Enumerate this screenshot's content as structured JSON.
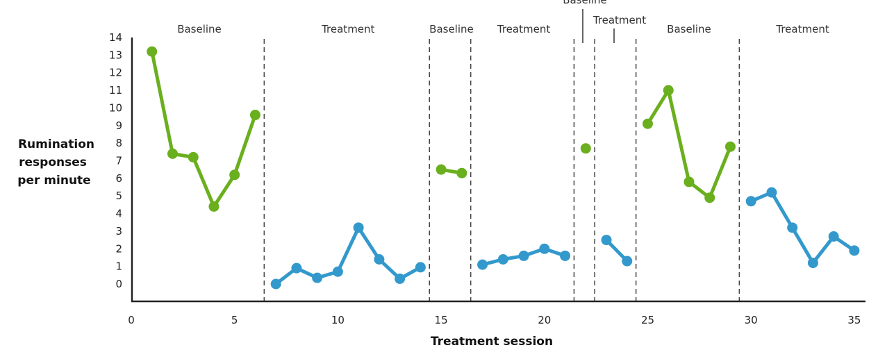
{
  "chart_data": {
    "type": "line",
    "xlabel": "Treatment session",
    "ylabel_lines": [
      "Rumination",
      "responses",
      "per minute"
    ],
    "xlim": [
      0,
      35
    ],
    "ylim": [
      0,
      14
    ],
    "xticks": [
      0,
      5,
      10,
      15,
      20,
      25,
      30,
      35
    ],
    "yticks": [
      0,
      1,
      2,
      3,
      4,
      5,
      6,
      7,
      8,
      9,
      10,
      11,
      12,
      13,
      14
    ],
    "grid": false,
    "colors": {
      "Baseline": "#6aaf1e",
      "Treatment": "#3399cc"
    },
    "phase_boundaries": [
      6.5,
      14.5,
      16.5,
      21.5,
      22.5,
      24.5,
      29.5
    ],
    "phases": [
      {
        "label": "Baseline",
        "x": [
          1,
          2,
          3,
          4,
          5,
          6
        ],
        "y": [
          13.2,
          7.4,
          7.2,
          4.4,
          6.2,
          9.6
        ]
      },
      {
        "label": "Treatment",
        "x": [
          7,
          8,
          9,
          10,
          11,
          12,
          13,
          14
        ],
        "y": [
          0,
          0.9,
          0.35,
          0.7,
          3.2,
          1.4,
          0.3,
          0.95
        ]
      },
      {
        "label": "Baseline",
        "x": [
          15,
          16
        ],
        "y": [
          6.5,
          6.3
        ]
      },
      {
        "label": "Treatment",
        "x": [
          17,
          18,
          19,
          20,
          21
        ],
        "y": [
          1.1,
          1.4,
          1.6,
          2.0,
          1.6
        ]
      },
      {
        "label": "Baseline",
        "x": [
          22
        ],
        "y": [
          7.7
        ]
      },
      {
        "label": "Treatment",
        "x": [
          23,
          24
        ],
        "y": [
          2.5,
          1.3
        ]
      },
      {
        "label": "Baseline",
        "x": [
          25,
          26,
          27,
          28,
          29
        ],
        "y": [
          9.1,
          11.0,
          5.8,
          4.9,
          7.8
        ]
      },
      {
        "label": "Treatment",
        "x": [
          30,
          31,
          32,
          33,
          34,
          35
        ],
        "y": [
          4.7,
          5.2,
          3.2,
          1.2,
          2.7,
          1.9
        ]
      }
    ]
  }
}
